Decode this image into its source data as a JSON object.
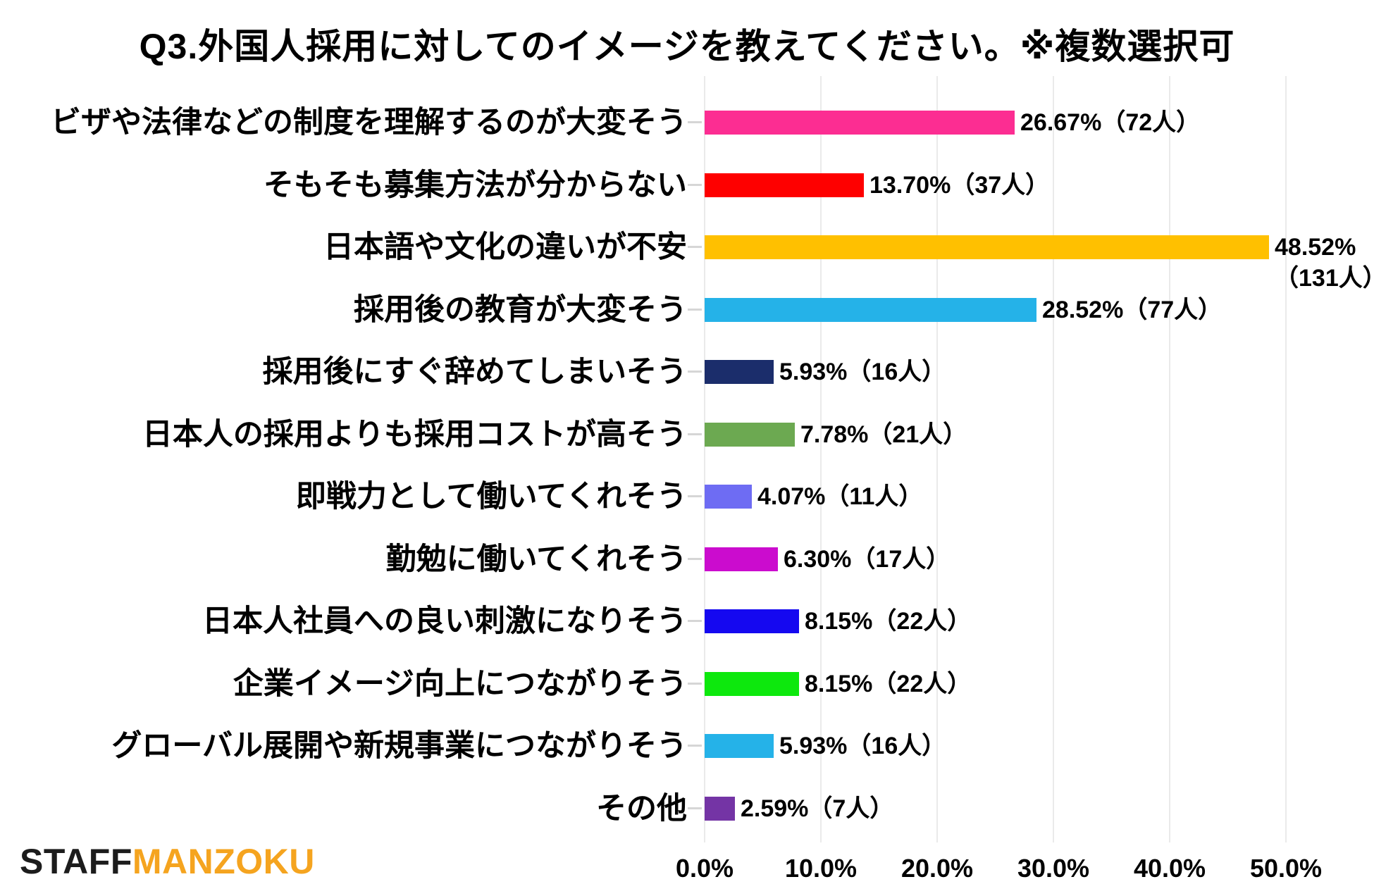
{
  "title": "Q3.外国人採用に対してのイメージを教えてください。※複数選択可",
  "logo": {
    "part1": "STAFF",
    "part2": "MANZOKU",
    "part2_color": "#F5A41F",
    "part1_color": "#1C1C1C"
  },
  "chart_data": {
    "type": "bar",
    "orientation": "horizontal",
    "title": "Q3.外国人採用に対してのイメージを教えてください。※複数選択可",
    "xlabel": "",
    "ylabel": "",
    "xlim": [
      0,
      50
    ],
    "grid": true,
    "legend": false,
    "x_tick_labels": [
      "0.0%",
      "10.0%",
      "20.0%",
      "30.0%",
      "40.0%",
      "50.0%"
    ],
    "categories": [
      "ビザや法律などの制度を理解するのが大変そう",
      "そもそも募集方法が分からない",
      "日本語や文化の違いが不安",
      "採用後の教育が大変そう",
      "採用後にすぐ辞めてしまいそう",
      "日本人の採用よりも採用コストが高そう",
      "即戦力として働いてくれそう",
      "勤勉に働いてくれそう",
      "日本人社員への良い刺激になりそう",
      "企業イメージ向上につながりそう",
      "グローバル展開や新規事業につながりそう",
      "その他"
    ],
    "values": [
      26.67,
      13.7,
      48.52,
      28.52,
      5.93,
      7.78,
      4.07,
      6.3,
      8.15,
      8.15,
      5.93,
      2.59
    ],
    "counts": [
      72,
      37,
      131,
      77,
      16,
      21,
      11,
      17,
      22,
      22,
      16,
      7
    ],
    "items": [
      {
        "label": "ビザや法律などの制度を理解するのが大変そう",
        "pct": 26.67,
        "count": 72,
        "color": "#FC2D92",
        "value_lines": [
          "26.67%（72人）"
        ]
      },
      {
        "label": "そもそも募集方法が分からない",
        "pct": 13.7,
        "count": 37,
        "color": "#FE0000",
        "value_lines": [
          "13.70%（37人）"
        ]
      },
      {
        "label": "日本語や文化の違いが不安",
        "pct": 48.52,
        "count": 131,
        "color": "#FFC000",
        "value_lines": [
          "48.52%",
          "（131人）"
        ]
      },
      {
        "label": "採用後の教育が大変そう",
        "pct": 28.52,
        "count": 77,
        "color": "#25B2E8",
        "value_lines": [
          "28.52%（77人）"
        ]
      },
      {
        "label": "採用後にすぐ辞めてしまいそう",
        "pct": 5.93,
        "count": 16,
        "color": "#1B2D6B",
        "value_lines": [
          "5.93%（16人）"
        ]
      },
      {
        "label": "日本人の採用よりも採用コストが高そう",
        "pct": 7.78,
        "count": 21,
        "color": "#6CA951",
        "value_lines": [
          "7.78%（21人）"
        ]
      },
      {
        "label": "即戦力として働いてくれそう",
        "pct": 4.07,
        "count": 11,
        "color": "#6E6CF3",
        "value_lines": [
          "4.07%（11人）"
        ]
      },
      {
        "label": "勤勉に働いてくれそう",
        "pct": 6.3,
        "count": 17,
        "color": "#CB0CCE",
        "value_lines": [
          "6.30%（17人）"
        ]
      },
      {
        "label": "日本人社員への良い刺激になりそう",
        "pct": 8.15,
        "count": 22,
        "color": "#1508F0",
        "value_lines": [
          "8.15%（22人）"
        ]
      },
      {
        "label": "企業イメージ向上につながりそう",
        "pct": 8.15,
        "count": 22,
        "color": "#0DE80D",
        "value_lines": [
          "8.15%（22人）"
        ]
      },
      {
        "label": "グローバル展開や新規事業につながりそう",
        "pct": 5.93,
        "count": 16,
        "color": "#25B2E8",
        "value_lines": [
          "5.93%（16人）"
        ]
      },
      {
        "label": "その他",
        "pct": 2.59,
        "count": 7,
        "color": "#7434A5",
        "value_lines": [
          "2.59%（7人）"
        ]
      }
    ]
  }
}
